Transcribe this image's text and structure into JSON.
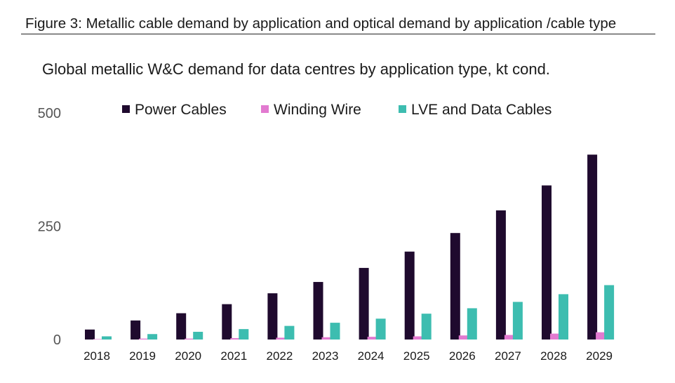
{
  "figure": {
    "title": "Figure 3: Metallic cable demand by application and optical demand by application /cable type"
  },
  "chart_data": {
    "type": "bar",
    "title": "Global metallic W&C demand for data centres by application type, kt cond.",
    "xlabel": "",
    "ylabel": "",
    "categories": [
      "2018",
      "2019",
      "2020",
      "2021",
      "2022",
      "2023",
      "2024",
      "2025",
      "2026",
      "2027",
      "2028",
      "2029"
    ],
    "series": [
      {
        "name": "Power Cables",
        "color": "#1f0a2e",
        "values": [
          22,
          42,
          58,
          78,
          102,
          127,
          158,
          194,
          235,
          285,
          340,
          408
        ]
      },
      {
        "name": "Winding Wire",
        "color": "#e27ad0",
        "values": [
          1,
          2,
          2,
          3,
          4,
          5,
          6,
          7,
          9,
          10,
          13,
          16
        ]
      },
      {
        "name": "LVE and Data Cables",
        "color": "#3dbdb0",
        "values": [
          7,
          12,
          17,
          23,
          30,
          37,
          46,
          57,
          69,
          83,
          100,
          120
        ]
      }
    ],
    "ylim": [
      0,
      500
    ],
    "yticks": [
      "0",
      "250",
      "500"
    ],
    "grid": false,
    "legend_position": "top"
  }
}
